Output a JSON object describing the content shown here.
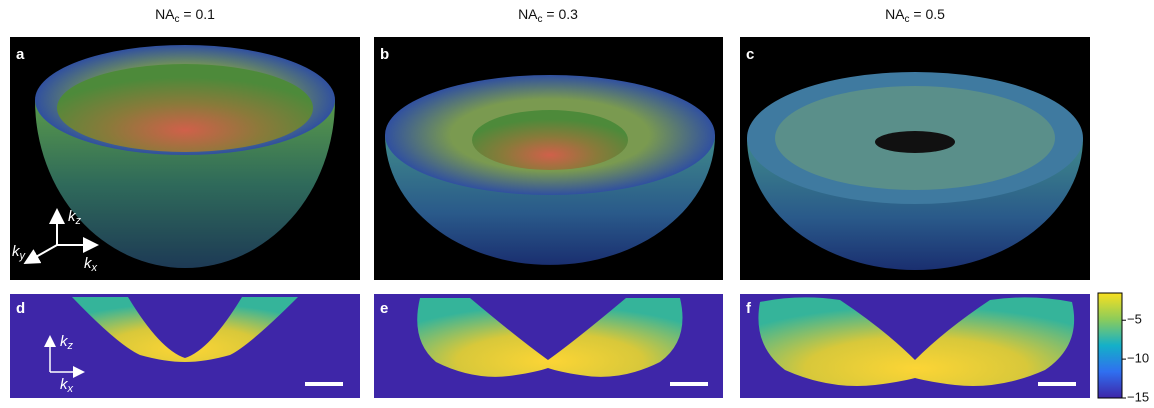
{
  "columns": [
    {
      "main": "NA",
      "sub": "c",
      "rest": " = 0.1"
    },
    {
      "main": "NA",
      "sub": "c",
      "rest": " = 0.3"
    },
    {
      "main": "NA",
      "sub": "c",
      "rest": " = 0.5"
    }
  ],
  "panels": [
    "a",
    "b",
    "c",
    "d",
    "e",
    "f"
  ],
  "axes_3d": {
    "z": {
      "base": "k",
      "sub": "z"
    },
    "y": {
      "base": "k",
      "sub": "y"
    },
    "x": {
      "base": "k",
      "sub": "x"
    }
  },
  "axes_2d": {
    "z": {
      "base": "k",
      "sub": "z"
    },
    "x": {
      "base": "k",
      "sub": "x"
    }
  },
  "colorbar": {
    "range": [
      -15,
      -1.5
    ],
    "ticks": [
      {
        "value": -5,
        "label": "−5"
      },
      {
        "value": -10,
        "label": "−10"
      },
      {
        "value": -15,
        "label": "−15"
      }
    ]
  }
}
